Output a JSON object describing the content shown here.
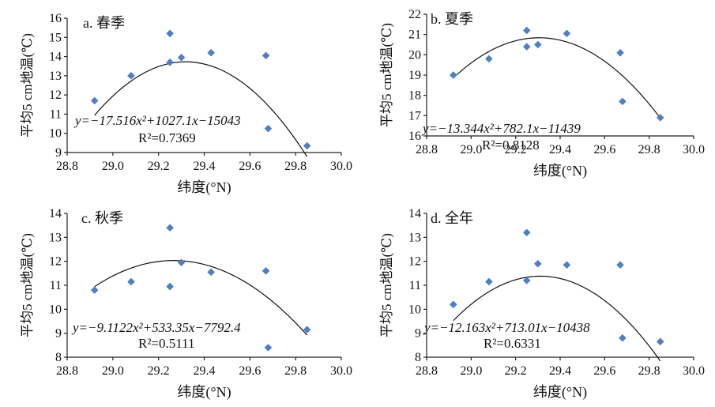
{
  "colors": {
    "point": "#4f7fc3",
    "curve": "#111111",
    "axis": "#222222"
  },
  "chart_data": [
    {
      "type": "scatter",
      "title": "a. 春季",
      "xlabel": "纬度(°N)",
      "ylabel": "平均5 cm地温(℃)",
      "xlim": [
        28.8,
        30.0
      ],
      "ylim": [
        9,
        16
      ],
      "x_ticks": [
        "28.8",
        "29.0",
        "29.2",
        "29.4",
        "29.6",
        "29.8",
        "30.0"
      ],
      "y_ticks": [
        "9",
        "10",
        "11",
        "12",
        "13",
        "14",
        "15",
        "16"
      ],
      "points": [
        {
          "x": 28.92,
          "y": 11.7
        },
        {
          "x": 29.08,
          "y": 13.0
        },
        {
          "x": 29.25,
          "y": 15.2
        },
        {
          "x": 29.25,
          "y": 13.7
        },
        {
          "x": 29.3,
          "y": 13.95
        },
        {
          "x": 29.43,
          "y": 14.2
        },
        {
          "x": 29.67,
          "y": 14.05
        },
        {
          "x": 29.68,
          "y": 10.25
        },
        {
          "x": 29.85,
          "y": 9.35
        }
      ],
      "fit": {
        "a": -17.516,
        "b": 1027.1,
        "c": -15043,
        "x_range": [
          28.92,
          29.85
        ]
      },
      "equation": "y=−17.516x²+1027.1x−15043",
      "r2": "R²=0.7369"
    },
    {
      "type": "scatter",
      "title": "b. 夏季",
      "xlabel": "纬度(°N)",
      "ylabel": "平均5 cm地温(℃)",
      "xlim": [
        28.8,
        30.0
      ],
      "ylim": [
        16,
        22
      ],
      "x_ticks": [
        "28.8",
        "29.0",
        "29.2",
        "29.4",
        "29.6",
        "29.8",
        "30.0"
      ],
      "y_ticks": [
        "16",
        "17",
        "18",
        "19",
        "20",
        "21",
        "22"
      ],
      "points": [
        {
          "x": 28.92,
          "y": 19.0
        },
        {
          "x": 29.08,
          "y": 19.8
        },
        {
          "x": 29.25,
          "y": 21.2
        },
        {
          "x": 29.25,
          "y": 20.4
        },
        {
          "x": 29.3,
          "y": 20.5
        },
        {
          "x": 29.43,
          "y": 21.05
        },
        {
          "x": 29.67,
          "y": 20.1
        },
        {
          "x": 29.68,
          "y": 17.7
        },
        {
          "x": 29.85,
          "y": 16.9
        }
      ],
      "fit": {
        "a": -13.344,
        "b": 782.1,
        "c": -11439,
        "x_range": [
          28.92,
          29.85
        ]
      },
      "equation": "y=−13.344x²+782.1x−11439",
      "r2": "R²=0.8128"
    },
    {
      "type": "scatter",
      "title": "c. 秋季",
      "xlabel": "纬度(°N)",
      "ylabel": "平均5 cm地温(℃)",
      "xlim": [
        28.8,
        30.0
      ],
      "ylim": [
        8,
        14
      ],
      "x_ticks": [
        "28.8",
        "29.0",
        "29.2",
        "29.4",
        "29.6",
        "29.8",
        "30.0"
      ],
      "y_ticks": [
        "8",
        "9",
        "10",
        "11",
        "12",
        "13",
        "14"
      ],
      "points": [
        {
          "x": 28.92,
          "y": 10.8
        },
        {
          "x": 29.08,
          "y": 11.15
        },
        {
          "x": 29.25,
          "y": 13.4
        },
        {
          "x": 29.25,
          "y": 10.95
        },
        {
          "x": 29.3,
          "y": 11.95
        },
        {
          "x": 29.43,
          "y": 11.55
        },
        {
          "x": 29.67,
          "y": 11.6
        },
        {
          "x": 29.68,
          "y": 8.4
        },
        {
          "x": 29.85,
          "y": 9.15
        }
      ],
      "fit": {
        "a": -9.1122,
        "b": 533.35,
        "c": -7792.4,
        "x_range": [
          28.92,
          29.85
        ]
      },
      "equation": "y=−9.1122x²+533.35x−7792.4",
      "r2": "R²=0.5111"
    },
    {
      "type": "scatter",
      "title": "d. 全年",
      "xlabel": "纬度(°N)",
      "ylabel": "平均5 cm地温(℃)",
      "xlim": [
        28.8,
        30.0
      ],
      "ylim": [
        8,
        14
      ],
      "x_ticks": [
        "28.8",
        "29.0",
        "29.2",
        "29.4",
        "29.6",
        "29.8",
        "30.0"
      ],
      "y_ticks": [
        "8",
        "9",
        "10",
        "11",
        "12",
        "13",
        "14"
      ],
      "points": [
        {
          "x": 28.92,
          "y": 10.2
        },
        {
          "x": 29.08,
          "y": 11.15
        },
        {
          "x": 29.25,
          "y": 13.2
        },
        {
          "x": 29.25,
          "y": 11.2
        },
        {
          "x": 29.3,
          "y": 11.9
        },
        {
          "x": 29.43,
          "y": 11.85
        },
        {
          "x": 29.67,
          "y": 11.85
        },
        {
          "x": 29.68,
          "y": 8.8
        },
        {
          "x": 29.85,
          "y": 8.65
        }
      ],
      "fit": {
        "a": -12.163,
        "b": 713.01,
        "c": -10438,
        "x_range": [
          28.92,
          29.85
        ]
      },
      "equation": "y=−12.163x²+713.01x−10438",
      "r2": "R²=0.6331"
    }
  ]
}
